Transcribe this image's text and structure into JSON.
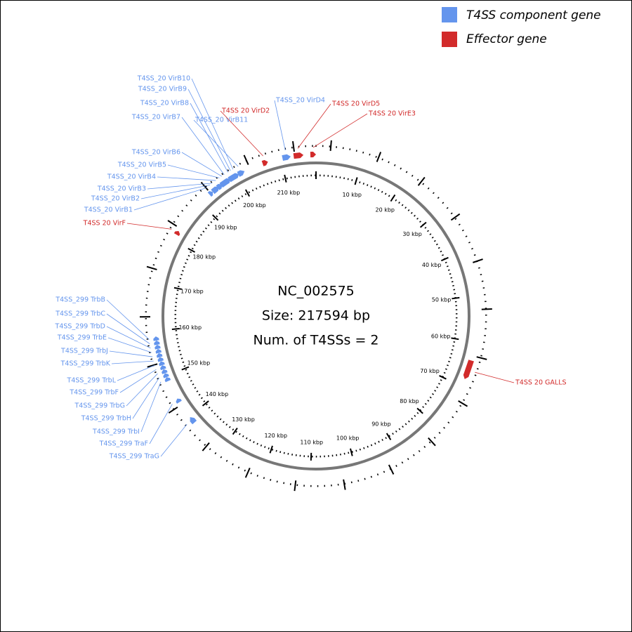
{
  "legend": [
    {
      "label": "T4SS component gene",
      "color": "#6495ed"
    },
    {
      "label": "Effector gene",
      "color": "#d22b2b"
    }
  ],
  "center": {
    "accession": "NC_002575",
    "size": "Size: 217594 bp",
    "count": "Num. of T4SSs = 2"
  },
  "scale_labels": [
    "10 kbp",
    "20 kbp",
    "30 kbp",
    "40 kbp",
    "50 kbp",
    "60 kbp",
    "70 kbp",
    "80 kbp",
    "90 kbp",
    "100 kbp",
    "110 kbp",
    "120 kbp",
    "130 kbp",
    "140 kbp",
    "150 kbp",
    "160 kbp",
    "170 kbp",
    "180 kbp",
    "190 kbp",
    "200 kbp",
    "210 kbp"
  ],
  "genes": [
    {
      "label": "T4SS_20 VirB10",
      "color": "#6495ed"
    },
    {
      "label": "T4SS_20 VirB9",
      "color": "#6495ed"
    },
    {
      "label": "T4SS_20 VirB8",
      "color": "#6495ed"
    },
    {
      "label": "T4SS_20 VirB7",
      "color": "#6495ed"
    },
    {
      "label": "T4SS_20 VirB11",
      "color": "#6495ed"
    },
    {
      "label": "T4SS_20 VirB6",
      "color": "#6495ed"
    },
    {
      "label": "T4SS_20 VirB5",
      "color": "#6495ed"
    },
    {
      "label": "T4SS_20 VirB4",
      "color": "#6495ed"
    },
    {
      "label": "T4SS_20 VirB3",
      "color": "#6495ed"
    },
    {
      "label": "T4SS_20 VirB2",
      "color": "#6495ed"
    },
    {
      "label": "T4SS_20 VirB1",
      "color": "#6495ed"
    },
    {
      "label": "T4SS_20 VirD4",
      "color": "#6495ed"
    },
    {
      "label": "T4SS 20 VirD2",
      "color": "#d22b2b"
    },
    {
      "label": "T4SS 20 VirD5",
      "color": "#d22b2b"
    },
    {
      "label": "T4SS 20 VirE3",
      "color": "#d22b2b"
    },
    {
      "label": "T4SS 20 VirF",
      "color": "#d22b2b"
    },
    {
      "label": "T4SS 20 GALLS",
      "color": "#d22b2b"
    },
    {
      "label": "T4SS_299 TrbB",
      "color": "#6495ed"
    },
    {
      "label": "T4SS_299 TrbC",
      "color": "#6495ed"
    },
    {
      "label": "T4SS_299 TrbD",
      "color": "#6495ed"
    },
    {
      "label": "T4SS_299 TrbE",
      "color": "#6495ed"
    },
    {
      "label": "T4SS_299 TrbJ",
      "color": "#6495ed"
    },
    {
      "label": "T4SS_299 TrbK",
      "color": "#6495ed"
    },
    {
      "label": "T4SS_299 TrbL",
      "color": "#6495ed"
    },
    {
      "label": "T4SS_299 TrbF",
      "color": "#6495ed"
    },
    {
      "label": "T4SS_299 TrbG",
      "color": "#6495ed"
    },
    {
      "label": "T4SS_299 TrbH",
      "color": "#6495ed"
    },
    {
      "label": "T4SS_299 TrbI",
      "color": "#6495ed"
    },
    {
      "label": "T4SS_299 TraF",
      "color": "#6495ed"
    },
    {
      "label": "T4SS_299 TraG",
      "color": "#6495ed"
    }
  ]
}
